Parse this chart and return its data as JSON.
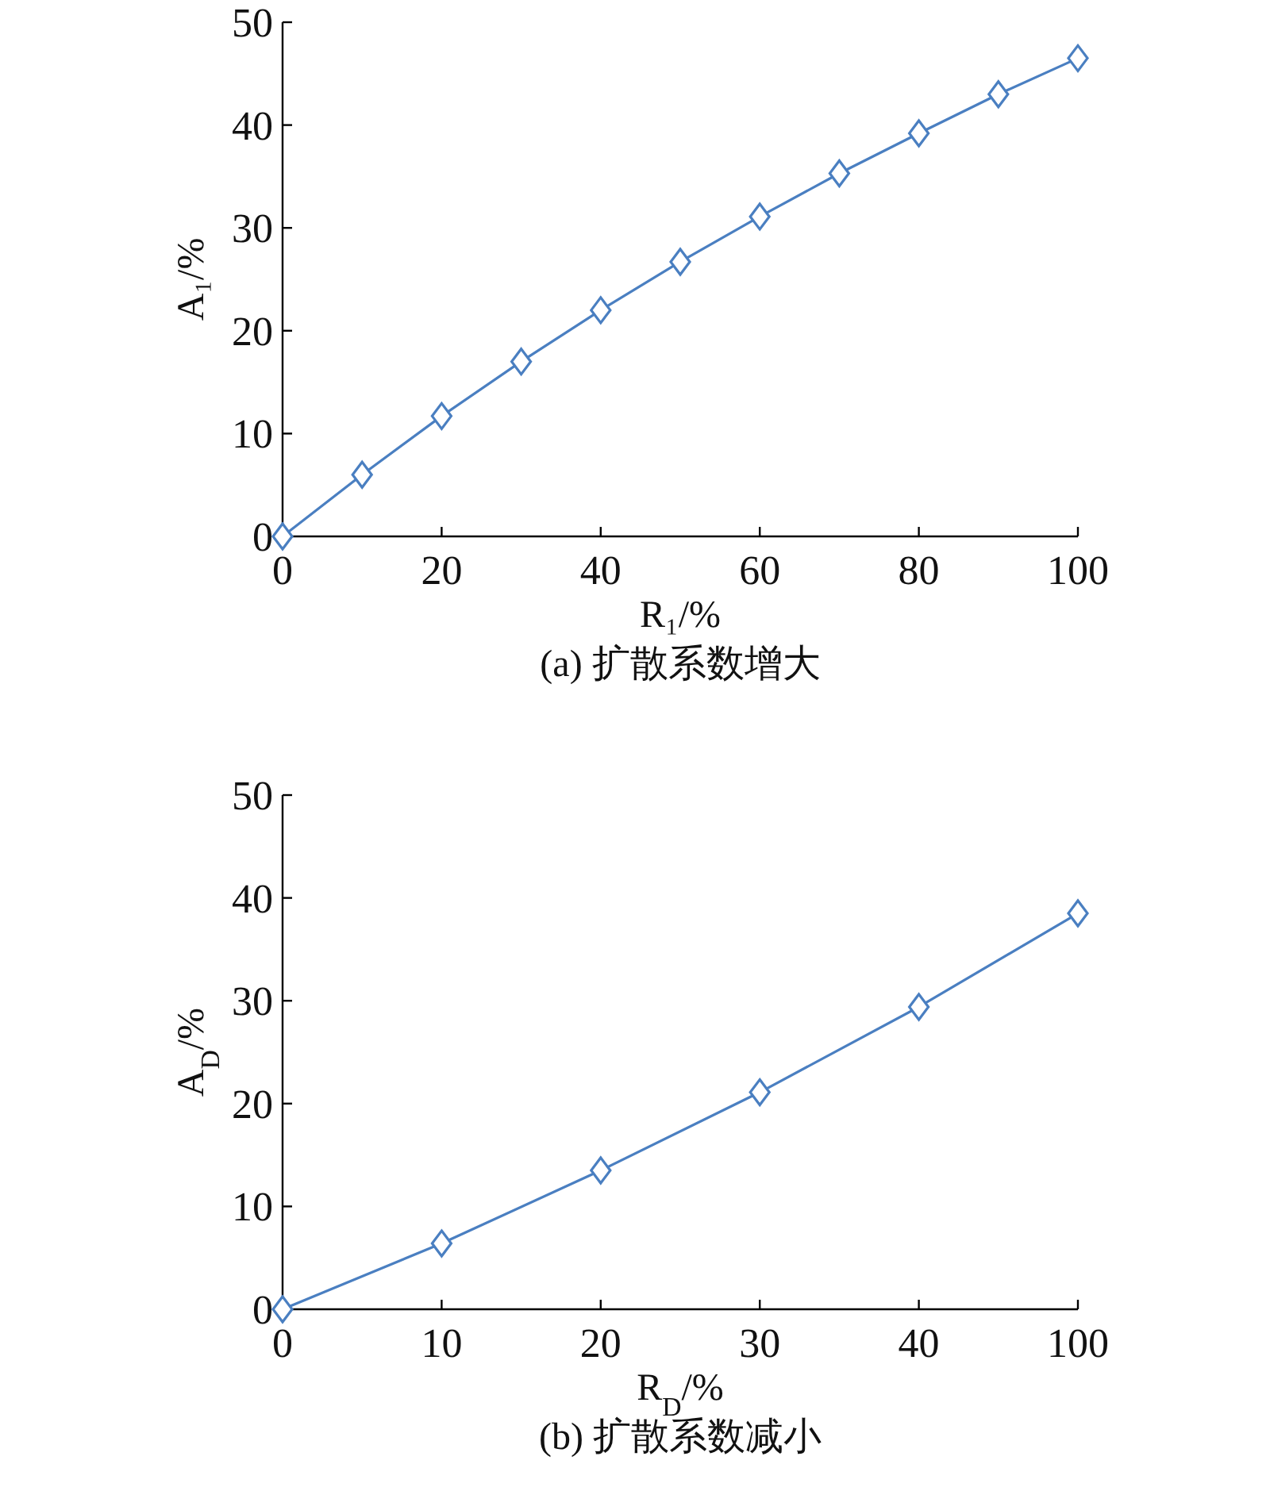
{
  "chart_data": [
    {
      "type": "line",
      "title": "(a) 扩散系数增大",
      "xlabel": "R₁/%",
      "ylabel": "A₁/%",
      "x": [
        0,
        10,
        20,
        30,
        40,
        50,
        60,
        70,
        80,
        90,
        100
      ],
      "series": [
        {
          "color": "#4a7fc1",
          "values": [
            0,
            6,
            11.7,
            17,
            22,
            26.7,
            31.1,
            35.3,
            39.2,
            43,
            46.5
          ]
        }
      ],
      "xlim": [
        0,
        100
      ],
      "xticks": [
        0,
        20,
        40,
        60,
        80,
        100
      ],
      "ylim": [
        0,
        50
      ],
      "yticks": [
        0,
        10,
        20,
        30,
        40,
        50
      ],
      "marker": "diamond",
      "line_style": "solid",
      "grid": false
    },
    {
      "type": "line",
      "title": "(b) 扩散系数减小",
      "xlabel": "R$_{D}$/%",
      "ylabel": "A$_{D}$/%",
      "categories": [
        "0",
        "10",
        "20",
        "30",
        "40",
        "100"
      ],
      "series": [
        {
          "color": "#4a7fc1",
          "values": [
            0,
            6.4,
            13.5,
            21.1,
            29.4,
            38.5
          ]
        }
      ],
      "ylim": [
        0,
        50
      ],
      "yticks": [
        0,
        10,
        20,
        30,
        40,
        50
      ],
      "marker": "diamond",
      "line_style": "solid",
      "grid": false
    }
  ]
}
